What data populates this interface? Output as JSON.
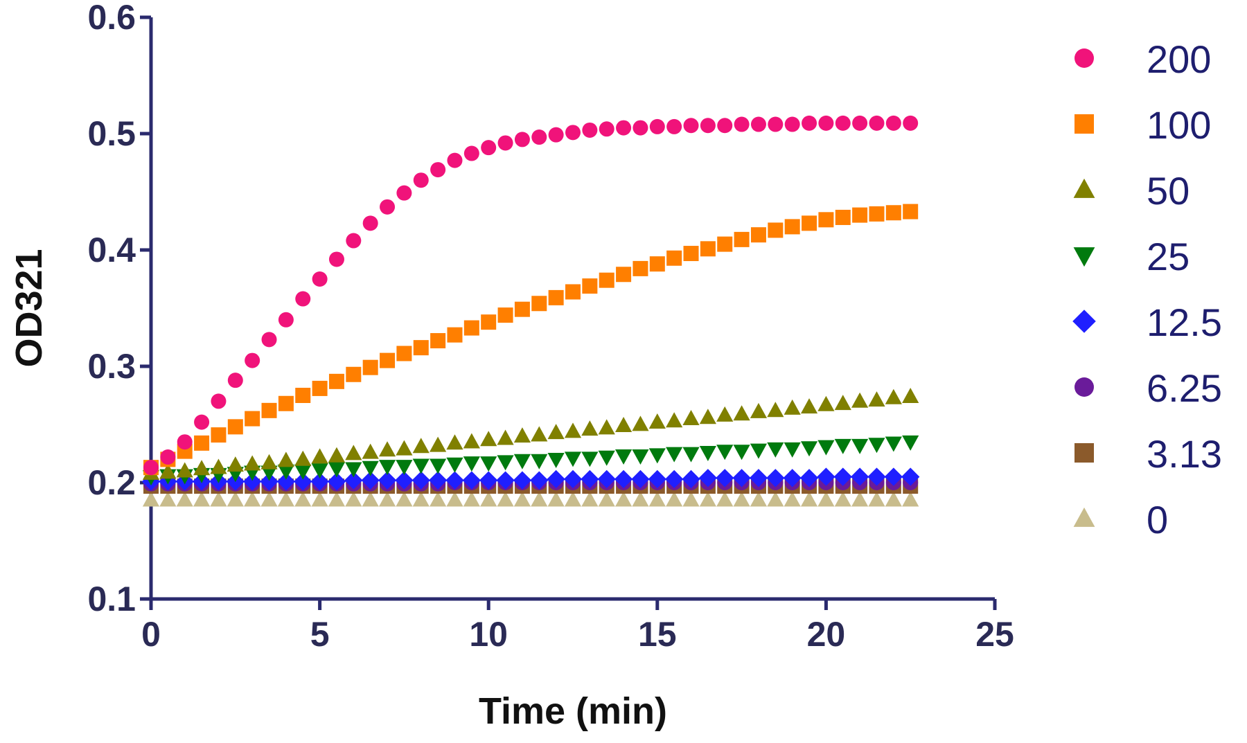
{
  "chart_data": {
    "type": "scatter",
    "xlabel": "Time (min)",
    "ylabel": "OD321",
    "xlim": [
      0,
      25
    ],
    "ylim": [
      0.1,
      0.6
    ],
    "x_ticks": [
      0,
      5,
      10,
      15,
      20,
      25
    ],
    "y_ticks": [
      0.1,
      0.2,
      0.3,
      0.4,
      0.5,
      0.6
    ],
    "x_tick_labels": [
      "0",
      "5",
      "10",
      "15",
      "20",
      "25"
    ],
    "y_tick_labels": [
      "0.1",
      "0.2",
      "0.3",
      "0.4",
      "0.5",
      "0.6"
    ],
    "grid": false,
    "legend_position": "right",
    "x": [
      0,
      0.5,
      1,
      1.5,
      2,
      2.5,
      3,
      3.5,
      4,
      4.5,
      5,
      5.5,
      6,
      6.5,
      7,
      7.5,
      8,
      8.5,
      9,
      9.5,
      10,
      10.5,
      11,
      11.5,
      12,
      12.5,
      13,
      13.5,
      14,
      14.5,
      15,
      15.5,
      16,
      16.5,
      17,
      17.5,
      18,
      18.5,
      19,
      19.5,
      20,
      20.5,
      21,
      21.5,
      22,
      22.5
    ],
    "series": [
      {
        "name": "200",
        "marker": "circle",
        "color": "#f0137a",
        "values": [
          0.213,
          0.222,
          0.235,
          0.252,
          0.27,
          0.288,
          0.305,
          0.323,
          0.34,
          0.358,
          0.375,
          0.392,
          0.408,
          0.423,
          0.437,
          0.449,
          0.46,
          0.469,
          0.477,
          0.483,
          0.488,
          0.492,
          0.495,
          0.497,
          0.499,
          0.501,
          0.503,
          0.504,
          0.505,
          0.505,
          0.506,
          0.506,
          0.507,
          0.507,
          0.507,
          0.508,
          0.508,
          0.508,
          0.508,
          0.509,
          0.509,
          0.509,
          0.509,
          0.509,
          0.509,
          0.509
        ]
      },
      {
        "name": "100",
        "marker": "square",
        "color": "#ff7f00",
        "values": [
          0.213,
          0.22,
          0.227,
          0.234,
          0.241,
          0.248,
          0.255,
          0.262,
          0.268,
          0.275,
          0.281,
          0.287,
          0.293,
          0.299,
          0.305,
          0.311,
          0.316,
          0.322,
          0.327,
          0.333,
          0.338,
          0.344,
          0.349,
          0.354,
          0.359,
          0.364,
          0.369,
          0.374,
          0.379,
          0.384,
          0.388,
          0.393,
          0.397,
          0.401,
          0.405,
          0.409,
          0.413,
          0.417,
          0.42,
          0.423,
          0.426,
          0.428,
          0.43,
          0.431,
          0.432,
          0.433
        ]
      },
      {
        "name": "50",
        "marker": "triangle-up",
        "color": "#808000",
        "values": [
          0.208,
          0.209,
          0.21,
          0.212,
          0.213,
          0.215,
          0.216,
          0.217,
          0.219,
          0.22,
          0.222,
          0.223,
          0.225,
          0.226,
          0.228,
          0.229,
          0.231,
          0.232,
          0.234,
          0.235,
          0.237,
          0.238,
          0.24,
          0.241,
          0.243,
          0.244,
          0.246,
          0.247,
          0.249,
          0.25,
          0.252,
          0.253,
          0.255,
          0.256,
          0.258,
          0.259,
          0.261,
          0.262,
          0.264,
          0.265,
          0.267,
          0.268,
          0.27,
          0.271,
          0.273,
          0.274
        ]
      },
      {
        "name": "25",
        "marker": "triangle-down",
        "color": "#007a0e",
        "values": [
          0.205,
          0.206,
          0.206,
          0.207,
          0.207,
          0.208,
          0.209,
          0.209,
          0.21,
          0.21,
          0.211,
          0.212,
          0.212,
          0.213,
          0.214,
          0.214,
          0.215,
          0.215,
          0.216,
          0.217,
          0.217,
          0.218,
          0.219,
          0.219,
          0.22,
          0.221,
          0.221,
          0.222,
          0.223,
          0.223,
          0.224,
          0.225,
          0.225,
          0.226,
          0.227,
          0.227,
          0.228,
          0.229,
          0.229,
          0.23,
          0.231,
          0.232,
          0.232,
          0.233,
          0.234,
          0.235
        ]
      },
      {
        "name": "12.5",
        "marker": "diamond",
        "color": "#1f1fff",
        "values": [
          0.201,
          0.201,
          0.201,
          0.201,
          0.201,
          0.201,
          0.201,
          0.201,
          0.201,
          0.201,
          0.201,
          0.201,
          0.202,
          0.202,
          0.202,
          0.202,
          0.202,
          0.202,
          0.202,
          0.202,
          0.202,
          0.202,
          0.202,
          0.202,
          0.203,
          0.203,
          0.203,
          0.203,
          0.203,
          0.203,
          0.203,
          0.203,
          0.203,
          0.204,
          0.204,
          0.204,
          0.204,
          0.204,
          0.204,
          0.204,
          0.205,
          0.205,
          0.205,
          0.205,
          0.205,
          0.205
        ]
      },
      {
        "name": "6.25",
        "marker": "circle",
        "color": "#6a1b9a",
        "values": [
          0.199,
          0.199,
          0.199,
          0.199,
          0.199,
          0.199,
          0.199,
          0.199,
          0.199,
          0.199,
          0.199,
          0.199,
          0.199,
          0.199,
          0.199,
          0.199,
          0.199,
          0.199,
          0.2,
          0.2,
          0.2,
          0.2,
          0.2,
          0.2,
          0.2,
          0.2,
          0.2,
          0.2,
          0.2,
          0.2,
          0.2,
          0.2,
          0.2,
          0.2,
          0.2,
          0.2,
          0.2,
          0.2,
          0.2,
          0.2,
          0.2,
          0.2,
          0.2,
          0.2,
          0.2,
          0.2
        ]
      },
      {
        "name": "3.13",
        "marker": "square",
        "color": "#8b5a2b",
        "values": [
          0.197,
          0.197,
          0.197,
          0.197,
          0.197,
          0.197,
          0.197,
          0.197,
          0.197,
          0.197,
          0.197,
          0.197,
          0.197,
          0.197,
          0.197,
          0.197,
          0.197,
          0.197,
          0.197,
          0.197,
          0.197,
          0.197,
          0.197,
          0.197,
          0.197,
          0.197,
          0.197,
          0.197,
          0.197,
          0.197,
          0.197,
          0.197,
          0.197,
          0.197,
          0.197,
          0.197,
          0.197,
          0.197,
          0.197,
          0.197,
          0.197,
          0.197,
          0.197,
          0.197,
          0.197,
          0.197
        ]
      },
      {
        "name": "0",
        "marker": "triangle-up",
        "color": "#c8bc8c",
        "values": [
          0.185,
          0.185,
          0.185,
          0.185,
          0.185,
          0.185,
          0.185,
          0.185,
          0.185,
          0.185,
          0.185,
          0.185,
          0.185,
          0.185,
          0.185,
          0.185,
          0.185,
          0.185,
          0.185,
          0.185,
          0.185,
          0.185,
          0.185,
          0.185,
          0.185,
          0.185,
          0.185,
          0.185,
          0.185,
          0.185,
          0.185,
          0.185,
          0.185,
          0.185,
          0.185,
          0.185,
          0.185,
          0.185,
          0.185,
          0.185,
          0.185,
          0.185,
          0.185,
          0.185,
          0.185,
          0.185
        ]
      }
    ]
  }
}
